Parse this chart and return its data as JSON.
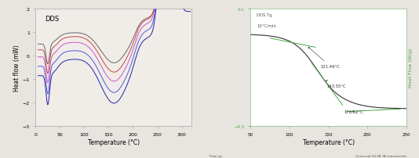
{
  "left_title": "DDS",
  "left_xlabel": "Temperature (°C)",
  "left_ylabel": "Heat flow (mW)",
  "left_xlim": [
    0,
    320
  ],
  "left_ylim": [
    -3,
    2
  ],
  "left_yticks": [
    -3,
    -2,
    -1,
    0,
    1,
    2
  ],
  "left_xticks": [
    0,
    50,
    100,
    150,
    200,
    250,
    300
  ],
  "right_xlabel": "Temperature (°C)",
  "right_ylabel": "Heat Flow (W/g)",
  "right_xlim": [
    50,
    250
  ],
  "right_ylim": [
    -0.5,
    0.1
  ],
  "right_yticks": [
    -0.5,
    0.1
  ],
  "right_xticks": [
    50,
    100,
    150,
    200,
    250
  ],
  "right_label1": "DDS Tg",
  "right_label2": "10°C/min",
  "right_annot1": "121.49°C",
  "right_annot2": "143.55°C",
  "right_annot3": "176.62°C",
  "right_footer_left": "Flow up",
  "right_footer_right": "Universal V4.2B TA instruments",
  "left_bg": "#f0ede8",
  "right_bg": "#ffffff",
  "fig_bg": "#e8e5e0",
  "line_colors_left": [
    "#2222aa",
    "#5555dd",
    "#cc55cc",
    "#cc4444",
    "#666666"
  ],
  "line_color_right_main": "#333333",
  "line_color_right_tangent": "#44aa44",
  "spine_color_right": "#88bb88",
  "tick_color_right": "#44aa44"
}
